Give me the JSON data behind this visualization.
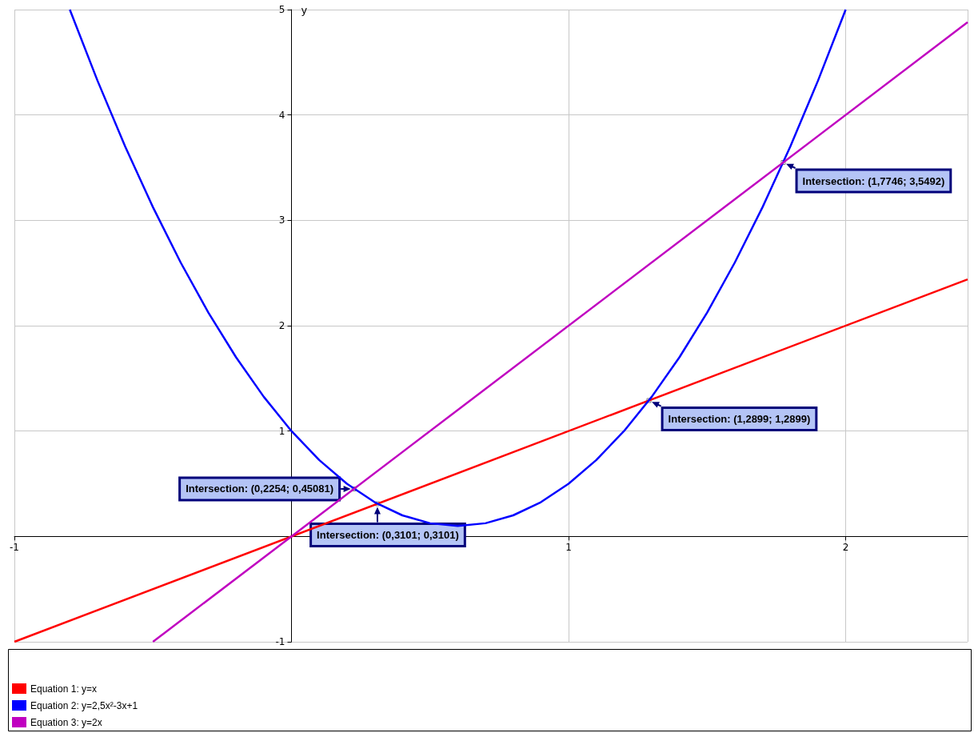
{
  "chart_data": {
    "type": "line",
    "ylabel": "y",
    "xlim": [
      -1,
      2.44
    ],
    "ylim": [
      -1,
      5
    ],
    "xticks": [
      -1,
      {
        "value": 0,
        "label": null
      },
      1,
      2
    ],
    "yticks": [
      -1,
      {
        "value": 0,
        "label": null
      },
      1,
      2,
      3,
      4,
      5
    ],
    "grid": true,
    "legend": "bottom left",
    "marker": "none",
    "line_style": "solid",
    "series": [
      {
        "name": "Equation 1: y=x",
        "color": "#ff0000",
        "x": [
          -1,
          2.44
        ],
        "values": [
          -1,
          2.44
        ]
      },
      {
        "name": "Equation 2: y=2,5x²-3x+1",
        "color": "#0000ff",
        "x": [
          -0.8,
          -0.7,
          -0.6,
          -0.5,
          -0.4,
          -0.3,
          -0.2,
          -0.1,
          0,
          0.1,
          0.2,
          0.3,
          0.4,
          0.5,
          0.6,
          0.7,
          0.8,
          0.9,
          1,
          1.1,
          1.2,
          1.3,
          1.4,
          1.5,
          1.6,
          1.7,
          1.8,
          1.9,
          2
        ],
        "values": [
          5,
          4.325,
          3.7,
          3.125,
          2.6,
          2.125,
          1.7,
          1.325,
          1,
          0.725,
          0.5,
          0.325,
          0.2,
          0.125,
          0.1,
          0.125,
          0.2,
          0.325,
          0.5,
          0.725,
          1,
          1.325,
          1.7,
          2.125,
          2.6,
          3.125,
          3.7,
          4.325,
          5
        ]
      },
      {
        "name": "Equation 3: y=2x",
        "color": "#c000c0",
        "x": [
          -0.5,
          2.44
        ],
        "values": [
          -1,
          4.88
        ]
      }
    ],
    "annotations": [
      {
        "text": "Intersection: (0,2254; 0,45081)",
        "x": 0.2254,
        "y": 0.45081
      },
      {
        "text": "Intersection: (0,3101; 0,3101)",
        "x": 0.3101,
        "y": 0.3101
      },
      {
        "text": "Intersection: (1,2899; 1,2899)",
        "x": 1.2899,
        "y": 1.2899
      },
      {
        "text": "Intersection: (1,7746; 3,5492)",
        "x": 1.7746,
        "y": 3.5492
      }
    ]
  }
}
